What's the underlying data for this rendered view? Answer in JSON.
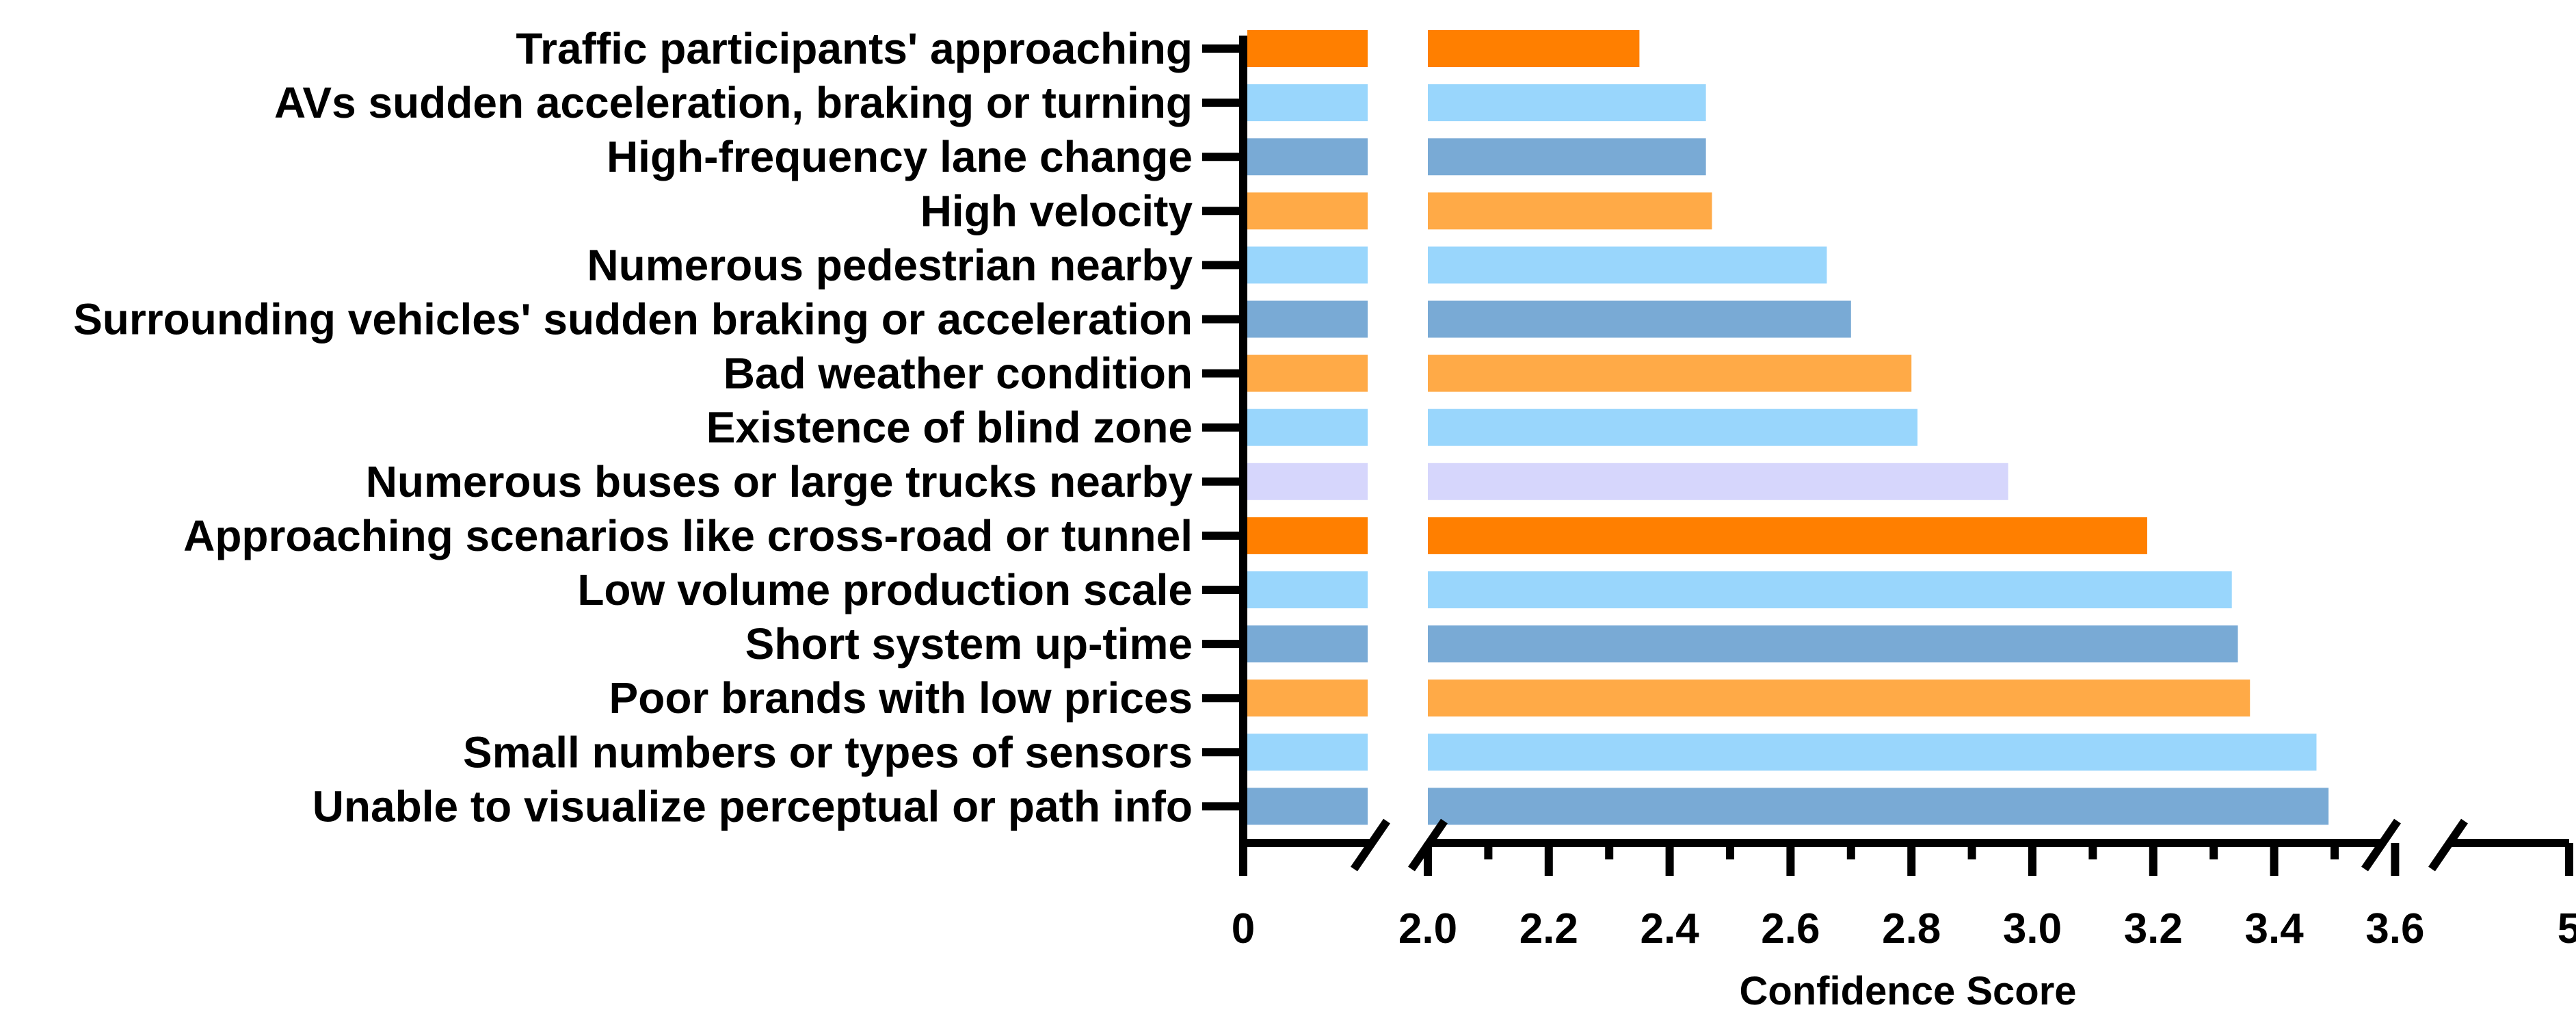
{
  "chart_data": {
    "type": "bar",
    "orientation": "horizontal",
    "title": "",
    "xlabel": "Confidence Score",
    "ylabel": "",
    "axis_breaks": [
      [
        0.3,
        2.0
      ],
      [
        3.6,
        4.6
      ]
    ],
    "xticks": [
      "0",
      "2.0",
      "2.2",
      "2.4",
      "2.6",
      "2.8",
      "3.0",
      "3.2",
      "3.4",
      "3.6",
      "5"
    ],
    "categories": [
      "Traffic participants' approaching",
      "AVs sudden acceleration, braking or turning",
      "High-frequency lane change",
      "High velocity",
      "Numerous pedestrian nearby",
      "Surrounding vehicles' sudden braking or acceleration",
      "Bad weather condition",
      "Existence of blind zone",
      "Numerous buses or large trucks nearby",
      "Approaching scenarios like cross-road or tunnel",
      "Low volume production scale",
      "Short system up-time",
      "Poor brands with low prices",
      "Small numbers or types of sensors",
      "Unable to visualize perceptual or path info"
    ],
    "values": [
      2.35,
      2.46,
      2.46,
      2.47,
      2.66,
      2.7,
      2.8,
      2.81,
      2.96,
      3.19,
      3.33,
      3.34,
      3.36,
      3.47,
      3.49
    ],
    "colors": [
      "#FF7F00",
      "#99D6FC",
      "#79AAD5",
      "#FFAA47",
      "#99D6FC",
      "#79AAD5",
      "#FFAA47",
      "#99D6FC",
      "#D6D6FC",
      "#FF7F00",
      "#99D6FC",
      "#79AAD5",
      "#FFAA47",
      "#99D6FC",
      "#79AAD5"
    ]
  }
}
